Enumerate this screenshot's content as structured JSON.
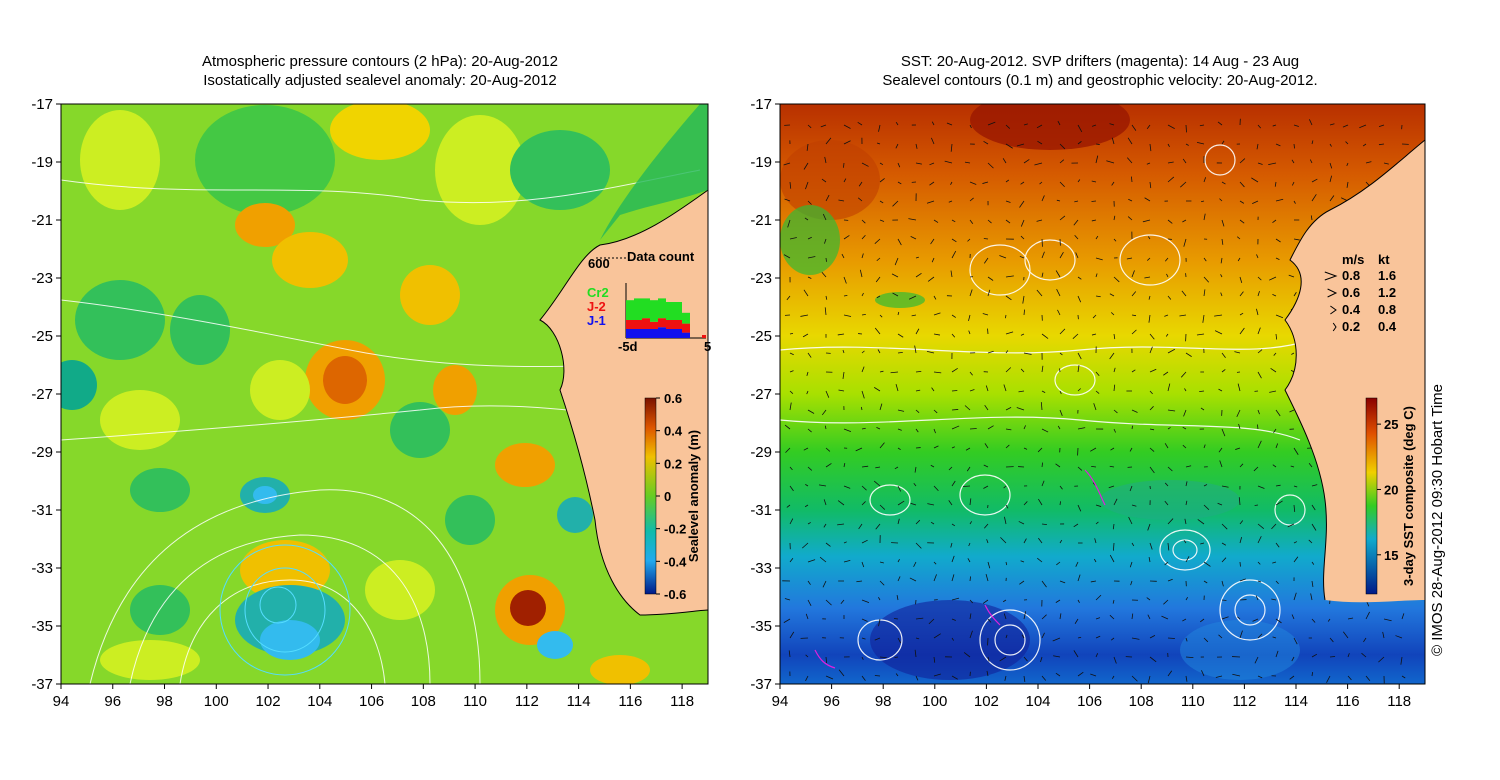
{
  "left_panel": {
    "title_line1": "Atmospheric pressure contours (2 hPa): 20-Aug-2012",
    "title_line2": "Isostatically adjusted sealevel anomaly: 20-Aug-2012",
    "colorbar": {
      "label": "Sealevel anomaly (m)",
      "ticks": [
        "0.6",
        "0.4",
        "0.2",
        "0",
        "-0.2",
        "-0.4",
        "-0.6"
      ],
      "range": [
        -0.6,
        0.6
      ]
    },
    "data_count": {
      "title": "Data count",
      "max_label": "600",
      "series": [
        {
          "name": "Cr2",
          "color": "#22dd22"
        },
        {
          "name": "J-2",
          "color": "#ee1111"
        },
        {
          "name": "J-1",
          "color": "#1111ee"
        }
      ],
      "xtick_left": "-5d",
      "xtick_right": "5"
    }
  },
  "right_panel": {
    "title_line1": "SST: 20-Aug-2012. SVP drifters (magenta): 14 Aug - 23 Aug",
    "title_line2": "Sealevel contours (0.1 m) and geostrophic velocity: 20-Aug-2012.",
    "velocity_legend": {
      "header_ms": "m/s",
      "header_kt": "kt",
      "rows": [
        {
          "ms": "0.8",
          "kt": "1.6"
        },
        {
          "ms": "0.6",
          "kt": "1.2"
        },
        {
          "ms": "0.4",
          "kt": "0.8"
        },
        {
          "ms": "0.2",
          "kt": "0.4"
        }
      ]
    },
    "colorbar": {
      "label": "3-day SST composite (deg C)",
      "ticks": [
        "25",
        "20",
        "15"
      ],
      "range": [
        12,
        27
      ]
    },
    "credit": "© IMOS 28-Aug-2012 09:30 Hobart Time"
  },
  "axes": {
    "x_ticks": [
      "94",
      "96",
      "98",
      "100",
      "102",
      "104",
      "106",
      "108",
      "110",
      "112",
      "114",
      "116",
      "118"
    ],
    "y_ticks": [
      "-17",
      "-19",
      "-21",
      "-23",
      "-25",
      "-27",
      "-29",
      "-31",
      "-33",
      "-35",
      "-37"
    ]
  },
  "colors": {
    "land": "#f9c49a",
    "anomaly_base": "#88dd22",
    "sst_warm": "#cc4400",
    "sst_cold": "#2266cc"
  }
}
